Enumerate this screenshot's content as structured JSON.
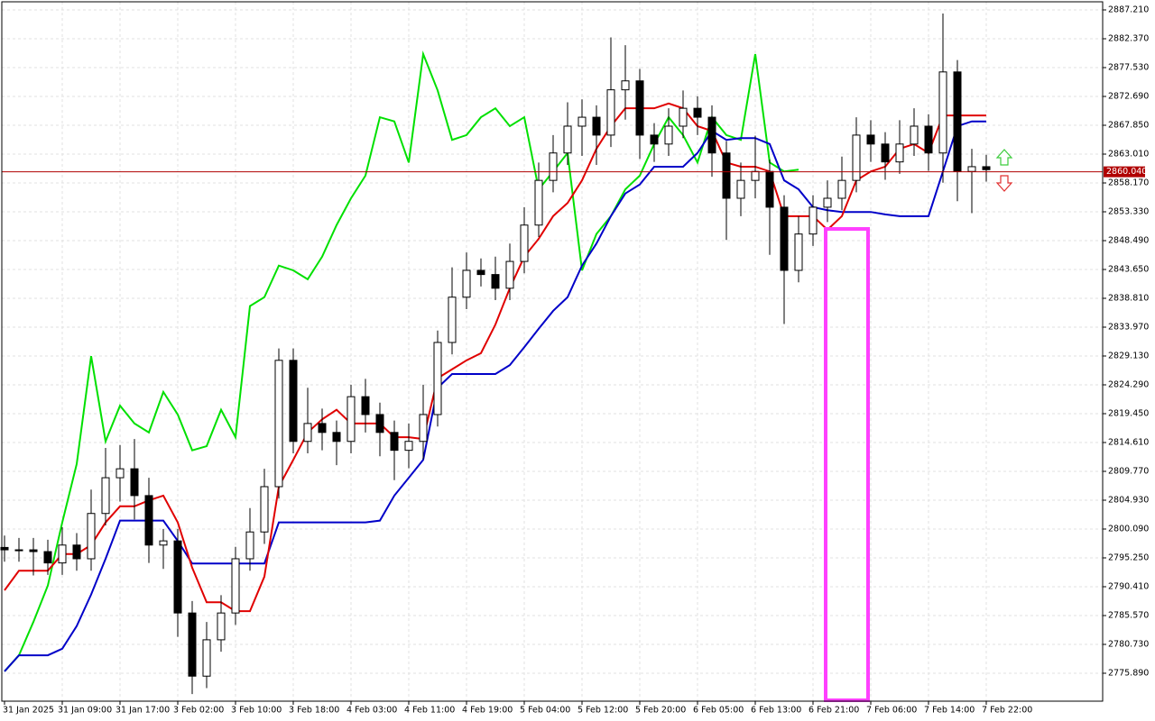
{
  "chart_data": {
    "type": "candlestick",
    "categories": [
      "31 Jan 2025",
      null,
      null,
      null,
      "31 Jan 09:00",
      null,
      null,
      null,
      "31 Jan 17:00",
      null,
      null,
      null,
      "3 Feb 02:00",
      null,
      null,
      null,
      "3 Feb 10:00",
      null,
      null,
      null,
      "3 Feb 18:00",
      null,
      null,
      null,
      "4 Feb 03:00",
      null,
      null,
      null,
      "4 Feb 11:00",
      null,
      null,
      null,
      "4 Feb 19:00",
      null,
      null,
      null,
      "5 Feb 04:00",
      null,
      null,
      null,
      "5 Feb 12:00",
      null,
      null,
      null,
      "5 Feb 20:00",
      null,
      null,
      null,
      "6 Feb 05:00",
      null,
      null,
      null,
      "6 Feb 13:00",
      null,
      null,
      null,
      "6 Feb 21:00",
      null,
      null,
      null,
      "7 Feb 06:00",
      null,
      null,
      null,
      "7 Feb 14:00",
      null,
      null,
      null,
      "7 Feb 22:00"
    ],
    "open": [
      2797.0,
      2796.6,
      2796.6,
      2796.3,
      2794.4,
      2797.4,
      2795.1,
      2802.7,
      2808.7,
      2810.2,
      2805.7,
      2797.4,
      2798.1,
      2786.0,
      2775.4,
      2781.5,
      2786.0,
      2795.1,
      2799.6,
      2807.2,
      2828.4,
      2814.8,
      2817.8,
      2816.3,
      2814.8,
      2822.3,
      2819.3,
      2816.3,
      2813.3,
      2814.8,
      2819.3,
      2831.4,
      2839.0,
      2843.5,
      2842.8,
      2840.5,
      2845.0,
      2851.1,
      2858.6,
      2863.2,
      2867.7,
      2869.2,
      2866.2,
      2873.8,
      2875.3,
      2866.2,
      2864.7,
      2867.7,
      2870.7,
      2869.2,
      2863.2,
      2855.6,
      2858.6,
      2860.1,
      2854.1,
      2843.5,
      2849.6,
      2854.1,
      2855.6,
      2858.6,
      2866.2,
      2864.7,
      2861.7,
      2864.7,
      2867.7,
      2863.2,
      2876.8,
      2860.1,
      2860.9
    ],
    "high": [
      2799.0,
      2798.6,
      2798.6,
      2798.3,
      2800.4,
      2799.4,
      2806.7,
      2813.7,
      2814.2,
      2815.2,
      2808.7,
      2800.1,
      2800.1,
      2788.0,
      2784.5,
      2789.0,
      2797.1,
      2803.6,
      2810.2,
      2830.4,
      2830.4,
      2823.8,
      2820.3,
      2818.3,
      2824.3,
      2825.3,
      2821.3,
      2818.3,
      2817.8,
      2824.3,
      2833.4,
      2844.0,
      2846.5,
      2845.5,
      2845.8,
      2848.0,
      2854.1,
      2861.6,
      2866.2,
      2871.7,
      2872.2,
      2871.2,
      2882.6,
      2881.3,
      2877.3,
      2868.2,
      2870.7,
      2873.7,
      2872.7,
      2871.2,
      2865.2,
      2861.6,
      2866.1,
      2862.1,
      2856.1,
      2852.6,
      2856.1,
      2858.6,
      2862.6,
      2869.2,
      2868.7,
      2866.7,
      2868.7,
      2870.7,
      2869.7,
      2886.6,
      2878.8,
      2863.9,
      2862.9
    ],
    "low": [
      2794.6,
      2794.6,
      2792.3,
      2792.4,
      2792.4,
      2793.1,
      2793.1,
      2800.7,
      2804.7,
      2801.7,
      2794.4,
      2793.4,
      2782.0,
      2772.4,
      2773.4,
      2779.5,
      2784.0,
      2793.1,
      2797.6,
      2805.2,
      2812.8,
      2812.8,
      2813.3,
      2810.8,
      2812.8,
      2816.3,
      2812.3,
      2808.3,
      2810.3,
      2811.8,
      2817.3,
      2829.4,
      2837.0,
      2840.8,
      2838.5,
      2838.5,
      2843.0,
      2849.1,
      2856.6,
      2861.2,
      2862.7,
      2861.2,
      2864.2,
      2868.8,
      2862.2,
      2861.7,
      2862.7,
      2865.7,
      2866.2,
      2859.2,
      2848.6,
      2852.6,
      2855.6,
      2846.1,
      2834.5,
      2841.5,
      2847.6,
      2851.6,
      2853.6,
      2856.6,
      2861.7,
      2858.7,
      2859.7,
      2862.7,
      2860.2,
      2858.2,
      2855.1,
      2853.1,
      2858.4
    ],
    "close": [
      2796.6,
      2796.6,
      2796.3,
      2794.4,
      2797.4,
      2795.1,
      2802.7,
      2808.7,
      2810.2,
      2805.7,
      2797.4,
      2798.1,
      2786.0,
      2775.4,
      2781.5,
      2786.0,
      2795.1,
      2799.6,
      2807.2,
      2828.4,
      2814.8,
      2817.8,
      2816.3,
      2814.8,
      2822.3,
      2819.3,
      2816.3,
      2813.3,
      2814.8,
      2819.3,
      2831.4,
      2839.0,
      2843.5,
      2842.8,
      2840.5,
      2845.0,
      2851.1,
      2858.6,
      2863.2,
      2867.7,
      2869.2,
      2866.2,
      2873.8,
      2875.3,
      2866.2,
      2864.7,
      2867.7,
      2870.7,
      2869.2,
      2863.2,
      2855.6,
      2858.6,
      2860.1,
      2854.1,
      2843.5,
      2849.6,
      2854.1,
      2855.6,
      2858.6,
      2866.2,
      2864.7,
      2861.7,
      2864.7,
      2867.7,
      2863.2,
      2876.8,
      2860.1,
      2860.9,
      2860.4
    ],
    "lines": [
      {
        "color": "#00e000",
        "values": [
          2776.2,
          2778.9,
          2784.5,
          2790.6,
          2801.2,
          2811.0,
          2829.1,
          2814.8,
          2820.8,
          2817.8,
          2816.3,
          2823.1,
          2819.3,
          2813.3,
          2814.0,
          2820.1,
          2815.5,
          2837.5,
          2839.0,
          2844.3,
          2843.5,
          2842.0,
          2845.8,
          2851.1,
          2855.6,
          2859.4,
          2869.2,
          2868.5,
          2861.6,
          2879.8,
          2873.7,
          2865.4,
          2866.2,
          2869.2,
          2870.7,
          2867.7,
          2869.2,
          2857.1,
          2860.1,
          2863.2,
          2843.5,
          2849.6,
          2852.6,
          2857.1,
          2859.4,
          2864.7,
          2869.2,
          2866.2,
          2861.6,
          2869.2,
          2866.2,
          2865.4,
          2879.8,
          2861.6,
          2860.1,
          2860.4,
          null,
          null,
          null,
          null,
          null,
          null,
          null,
          null,
          null,
          null,
          null,
          null,
          null
        ]
      },
      {
        "color": "#0000c8",
        "values": [
          2776.2,
          2778.9,
          2778.9,
          2778.9,
          2780.0,
          2783.8,
          2789.1,
          2795.1,
          2801.5,
          2801.5,
          2801.5,
          2801.5,
          2798.1,
          2794.3,
          2794.3,
          2794.3,
          2794.3,
          2794.3,
          2794.3,
          2801.2,
          2801.2,
          2801.2,
          2801.2,
          2801.2,
          2801.2,
          2801.2,
          2801.5,
          2805.7,
          2808.7,
          2811.7,
          2823.8,
          2826.1,
          2826.1,
          2826.1,
          2826.1,
          2827.6,
          2830.6,
          2833.7,
          2836.7,
          2839.0,
          2844.3,
          2848.0,
          2852.6,
          2856.4,
          2857.9,
          2860.9,
          2860.9,
          2860.9,
          2863.2,
          2866.9,
          2865.4,
          2865.7,
          2865.7,
          2864.7,
          2858.6,
          2857.1,
          2854.1,
          2853.6,
          2853.3,
          2853.3,
          2853.3,
          2852.9,
          2852.6,
          2852.6,
          2852.6,
          2860.1,
          2867.7,
          2868.5,
          2868.5
        ]
      },
      {
        "color": "#e00000",
        "values": [
          2789.8,
          2793.1,
          2793.1,
          2793.1,
          2795.9,
          2795.9,
          2797.4,
          2801.2,
          2803.9,
          2803.9,
          2804.9,
          2805.7,
          2801.2,
          2793.6,
          2787.8,
          2787.8,
          2786.3,
          2786.3,
          2792.1,
          2807.2,
          2811.7,
          2816.3,
          2818.5,
          2820.1,
          2817.8,
          2817.8,
          2817.8,
          2815.5,
          2815.5,
          2815.2,
          2825.4,
          2826.9,
          2828.4,
          2829.6,
          2834.4,
          2840.5,
          2845.8,
          2848.8,
          2852.6,
          2854.8,
          2858.6,
          2863.9,
          2867.7,
          2870.7,
          2870.7,
          2870.7,
          2871.5,
          2870.7,
          2867.7,
          2866.9,
          2861.6,
          2860.9,
          2860.9,
          2860.1,
          2852.6,
          2852.6,
          2852.6,
          2850.3,
          2852.6,
          2858.6,
          2860.1,
          2860.9,
          2863.9,
          2864.7,
          2863.2,
          2869.5,
          2869.5,
          2869.5,
          2869.5
        ]
      }
    ],
    "ylim": [
      2771.2,
      2888.57
    ],
    "yticks": [
      {
        "value": 2887.21,
        "label": "2887.210"
      },
      {
        "value": 2882.37,
        "label": "2882.370"
      },
      {
        "value": 2877.53,
        "label": "2877.530"
      },
      {
        "value": 2872.69,
        "label": "2872.690"
      },
      {
        "value": 2867.85,
        "label": "2867.850"
      },
      {
        "value": 2863.01,
        "label": "2863.010"
      },
      {
        "value": 2858.17,
        "label": "2858.170"
      },
      {
        "value": 2853.33,
        "label": "2853.330"
      },
      {
        "value": 2848.49,
        "label": "2848.490"
      },
      {
        "value": 2843.65,
        "label": "2843.650"
      },
      {
        "value": 2838.81,
        "label": "2838.810"
      },
      {
        "value": 2833.97,
        "label": "2833.970"
      },
      {
        "value": 2829.13,
        "label": "2829.130"
      },
      {
        "value": 2824.29,
        "label": "2824.290"
      },
      {
        "value": 2819.45,
        "label": "2819.450"
      },
      {
        "value": 2814.61,
        "label": "2814.610"
      },
      {
        "value": 2809.77,
        "label": "2809.770"
      },
      {
        "value": 2804.93,
        "label": "2804.930"
      },
      {
        "value": 2800.09,
        "label": "2800.090"
      },
      {
        "value": 2795.25,
        "label": "2795.250"
      },
      {
        "value": 2790.41,
        "label": "2790.410"
      },
      {
        "value": 2785.57,
        "label": "2785.570"
      },
      {
        "value": 2780.73,
        "label": "2780.730"
      },
      {
        "value": 2775.89,
        "label": "2775.890"
      }
    ],
    "grid": true,
    "current_price": {
      "value": 2860.04,
      "label": "2860.040",
      "color": "#b00000"
    }
  }
}
